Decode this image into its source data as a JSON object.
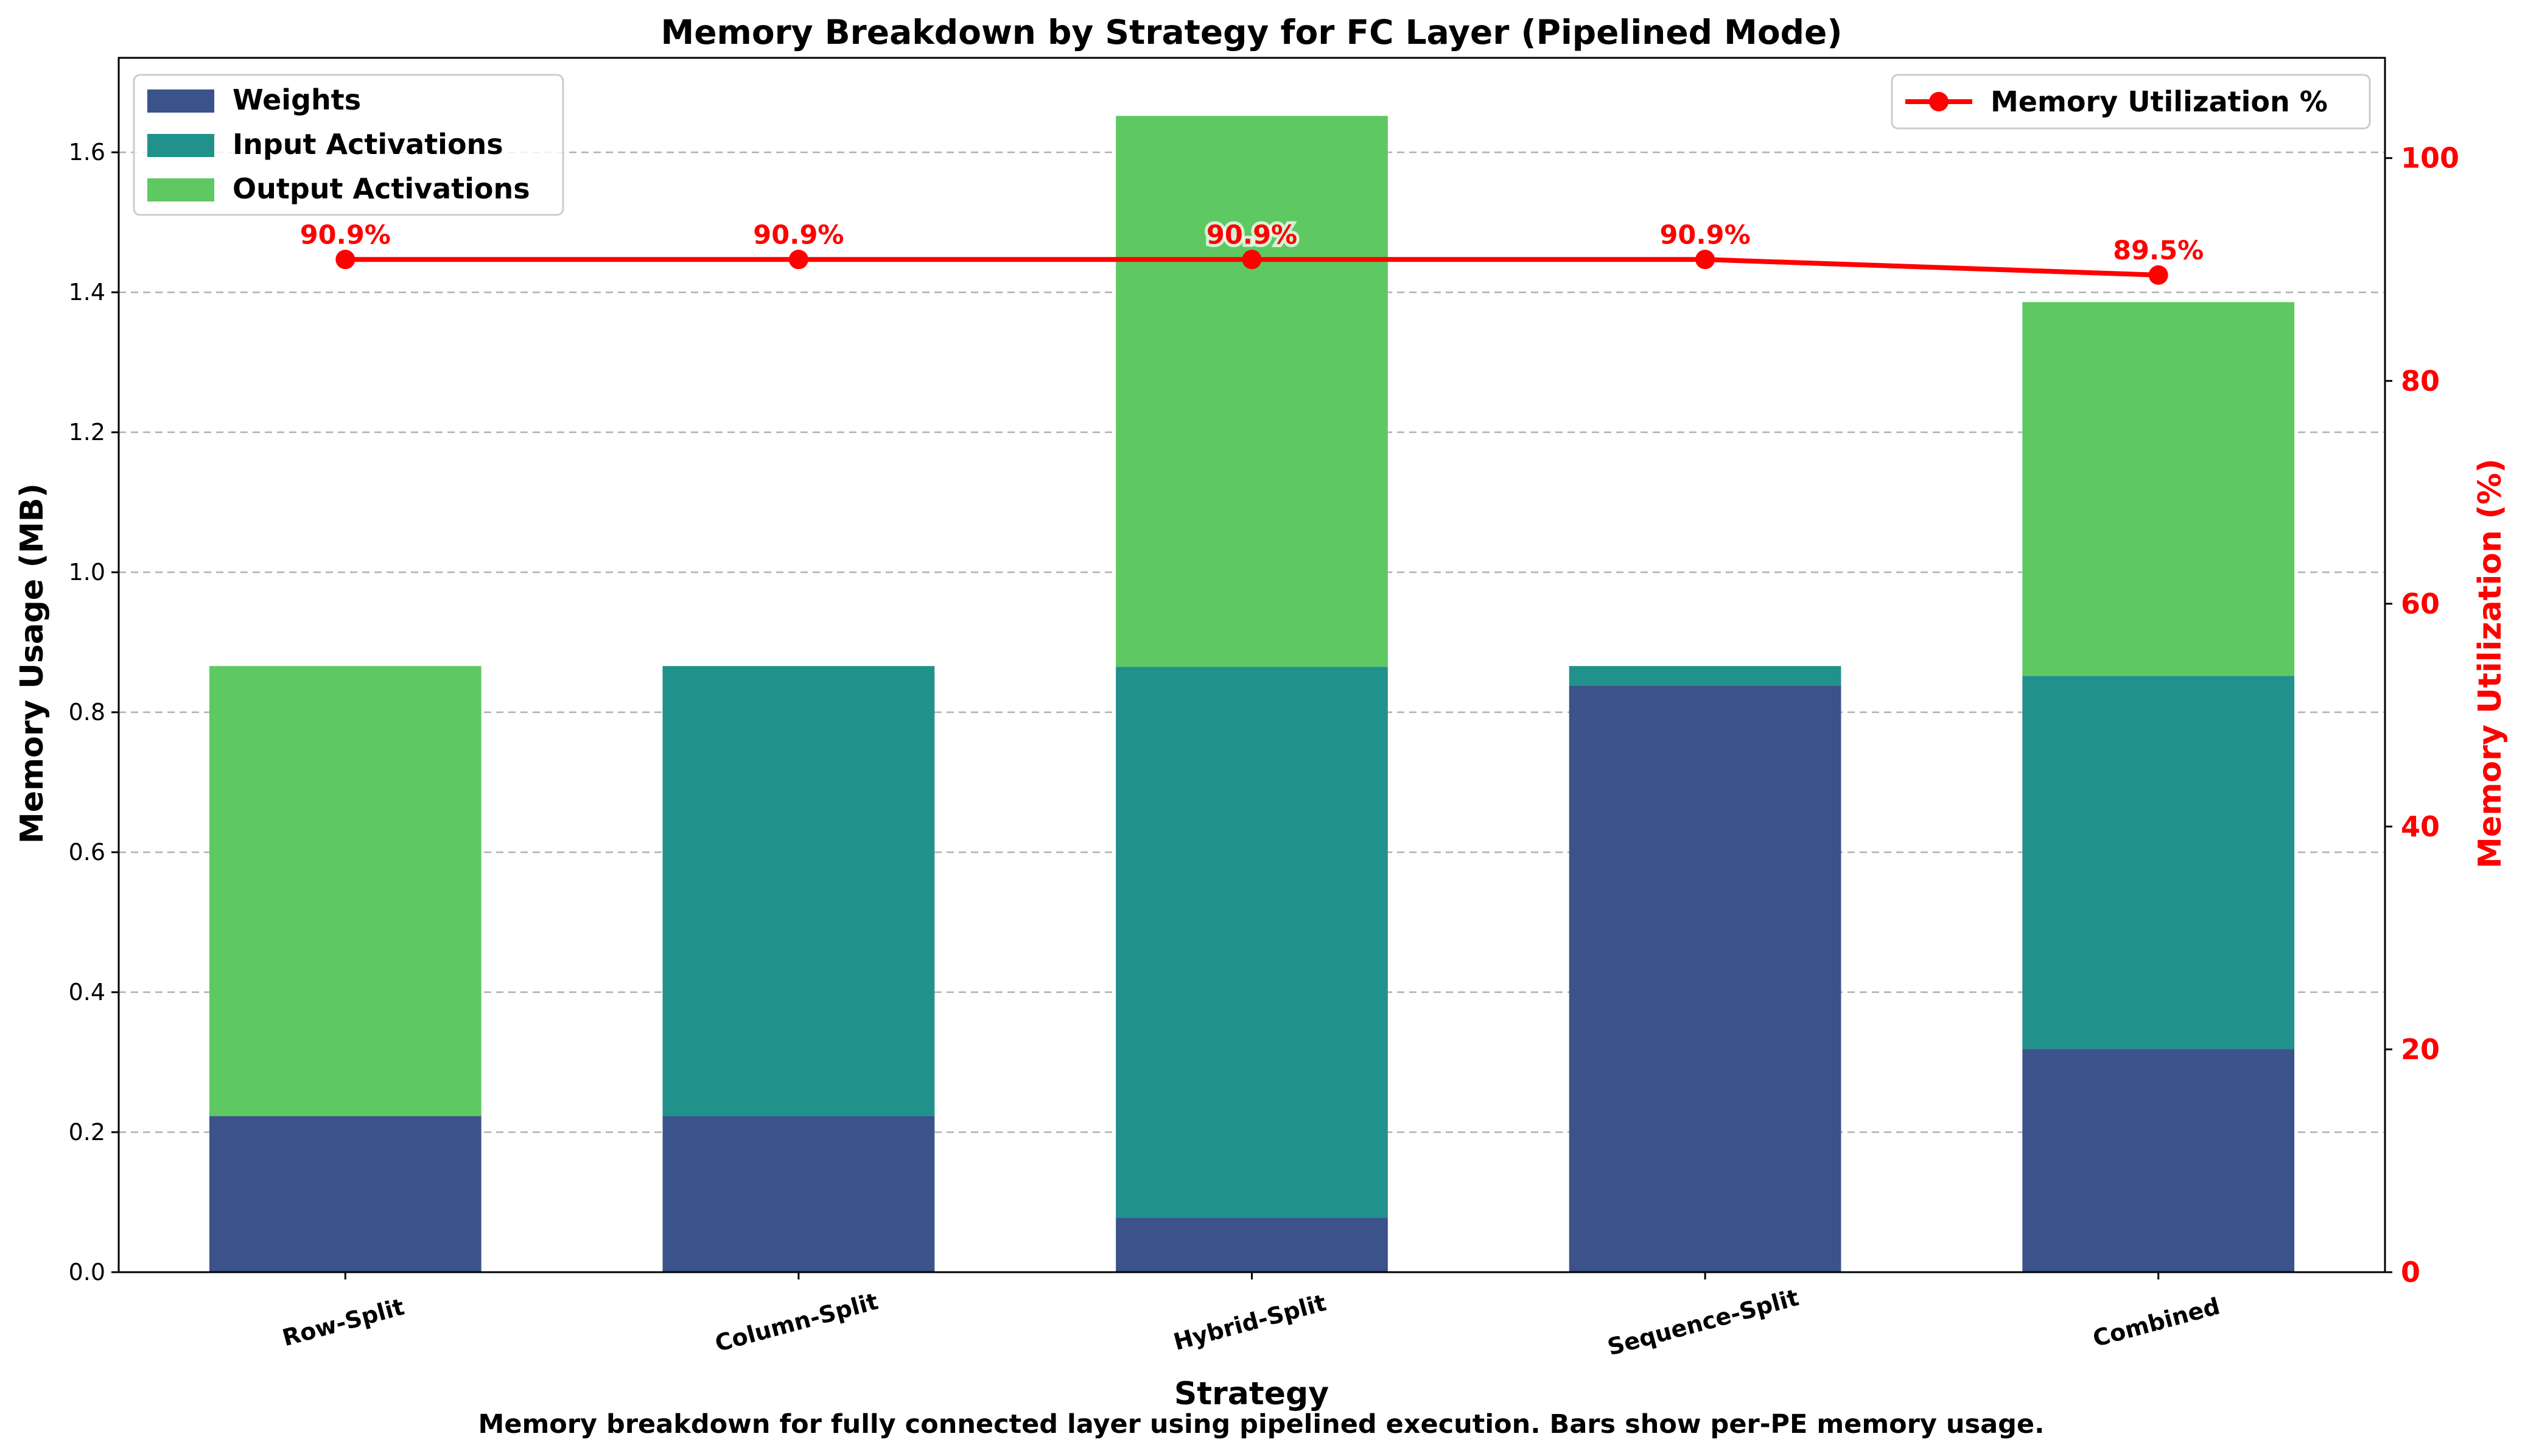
{
  "title": "Memory Breakdown by Strategy for FC Layer (Pipelined Mode)",
  "caption": "Memory breakdown for fully connected layer using pipelined execution. Bars show per-PE memory usage.",
  "chart_data": {
    "type": "bar",
    "stacked": true,
    "title": "Memory Breakdown by Strategy for FC Layer (Pipelined Mode)",
    "xlabel": "Strategy",
    "ylabel": "Memory Usage (MB)",
    "y2label": "Memory Utilization (%)",
    "categories": [
      "Row-Split",
      "Column-Split",
      "Hybrid-Split",
      "Sequence-Split",
      "Combined"
    ],
    "series": [
      {
        "name": "Weights",
        "color": "#3b528b",
        "values": [
          0.223,
          0.223,
          0.078,
          0.838,
          0.319
        ]
      },
      {
        "name": "Input Activations",
        "color": "#21918c",
        "values": [
          0.0,
          0.643,
          0.787,
          0.028,
          0.533
        ]
      },
      {
        "name": "Output Activations",
        "color": "#5ec962",
        "values": [
          0.643,
          0.0,
          0.787,
          0.0,
          0.534
        ]
      }
    ],
    "line_series": {
      "name": "Memory Utilization %",
      "color": "#ff0000",
      "axis": "right",
      "values": [
        90.9,
        90.9,
        90.9,
        90.9,
        89.5
      ],
      "labels": [
        "90.9%",
        "90.9%",
        "90.9%",
        "90.9%",
        "89.5%"
      ]
    },
    "ylim": [
      0,
      1.735
    ],
    "y2lim": [
      0,
      109
    ],
    "yticks": [
      "0.0",
      "0.2",
      "0.4",
      "0.6",
      "0.8",
      "1.0",
      "1.2",
      "1.4",
      "1.6"
    ],
    "y2ticks": [
      "0",
      "20",
      "40",
      "60",
      "80",
      "100"
    ],
    "grid": "y-dashed",
    "legend_bars": "upper-left",
    "legend_line": "upper-right"
  }
}
